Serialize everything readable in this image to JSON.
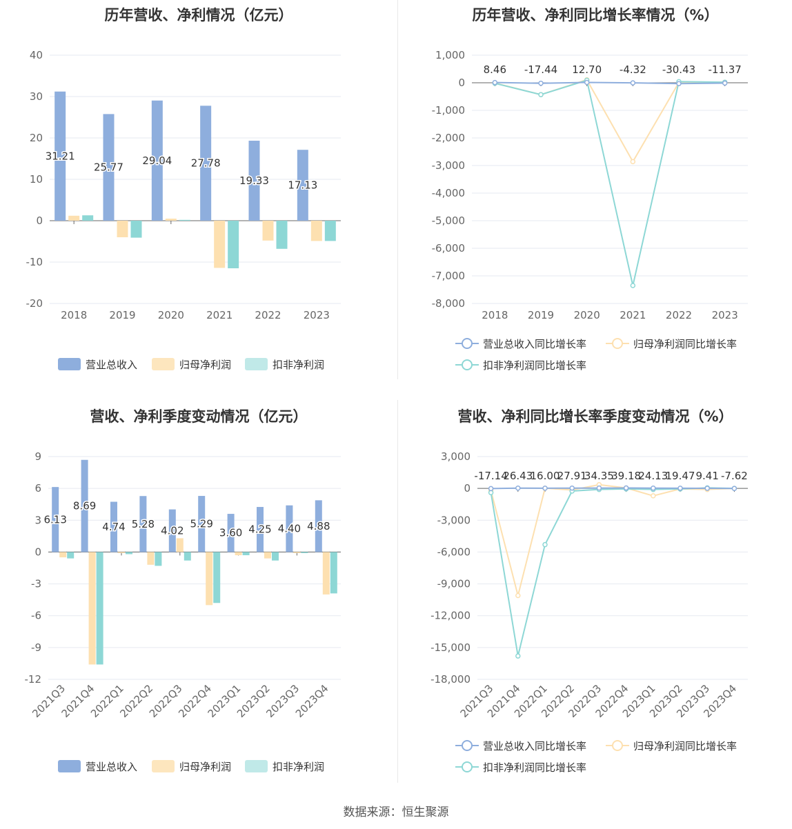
{
  "colors": {
    "revenue": "#8eaedd",
    "parent_profit": "#fde0b0",
    "deducted_profit": "#8dd7d5",
    "revenue_legend": "#8eaedd",
    "parent_legend": "#fde6be",
    "deducted_legend": "#c0e9e8",
    "axis_text": "#666666",
    "grid": "#e6e9f0",
    "label": "#333333"
  },
  "legend": {
    "revenue": "营业总收入",
    "parent_profit": "归母净利润",
    "deducted_profit": "扣非净利润",
    "revenue_growth": "营业总收入同比增长率",
    "parent_growth": "归母净利润同比增长率",
    "deducted_growth": "扣非净利润同比增长率"
  },
  "source": "数据来源：恒生聚源",
  "chart_data": [
    {
      "id": "annual-bars",
      "type": "bar",
      "title": "历年营收、净利情况（亿元）",
      "categories": [
        "2018",
        "2019",
        "2020",
        "2021",
        "2022",
        "2023"
      ],
      "series": [
        {
          "name": "营业总收入",
          "values": [
            31.21,
            25.77,
            29.04,
            27.78,
            19.33,
            17.13
          ]
        },
        {
          "name": "归母净利润",
          "values": [
            1.2,
            -4.0,
            0.5,
            -11.4,
            -4.8,
            -4.9
          ]
        },
        {
          "name": "扣非净利润",
          "values": [
            1.3,
            -4.1,
            0.2,
            -11.5,
            -6.8,
            -4.9
          ]
        }
      ],
      "data_labels": [
        "31.21",
        "25.77",
        "29.04",
        "27.78",
        "19.33",
        "17.13"
      ],
      "yticks": [
        "40",
        "30",
        "20",
        "10",
        "0",
        "-10",
        "-20"
      ],
      "ylim": [
        -20,
        40
      ],
      "grid": true,
      "legend_position": "bottom"
    },
    {
      "id": "annual-growth",
      "type": "line",
      "title": "历年营收、净利同比增长率情况（%）",
      "categories": [
        "2018",
        "2019",
        "2020",
        "2021",
        "2022",
        "2023"
      ],
      "series": [
        {
          "name": "营业总收入同比增长率",
          "values": [
            8.46,
            -17.44,
            12.7,
            -4.32,
            -30.43,
            -11.37
          ]
        },
        {
          "name": "归母净利润同比增长率",
          "values": [
            -10,
            -430,
            110,
            -2860,
            10,
            20
          ]
        },
        {
          "name": "扣非净利润同比增长率",
          "values": [
            -20,
            -430,
            90,
            -7350,
            40,
            20
          ]
        }
      ],
      "data_labels": [
        "8.46",
        "-17.44",
        "12.70",
        "-4.32",
        "-30.43",
        "-11.37"
      ],
      "yticks": [
        "1,000",
        "0",
        "-1,000",
        "-2,000",
        "-3,000",
        "-4,000",
        "-5,000",
        "-6,000",
        "-7,000",
        "-8,000"
      ],
      "ylim": [
        -8000,
        1000
      ],
      "grid": true,
      "legend_position": "bottom"
    },
    {
      "id": "quarter-bars",
      "type": "bar",
      "title": "营收、净利季度变动情况（亿元）",
      "categories": [
        "2021Q3",
        "2021Q4",
        "2022Q1",
        "2022Q2",
        "2022Q3",
        "2022Q4",
        "2023Q1",
        "2023Q2",
        "2023Q3",
        "2023Q4"
      ],
      "series": [
        {
          "name": "营业总收入",
          "values": [
            6.13,
            8.69,
            4.74,
            5.28,
            4.02,
            5.29,
            3.6,
            4.25,
            4.4,
            4.88
          ]
        },
        {
          "name": "归母净利润",
          "values": [
            -0.5,
            -10.6,
            -0.1,
            -1.2,
            1.3,
            -5.0,
            -0.3,
            -0.6,
            -0.1,
            -4.0
          ]
        },
        {
          "name": "扣非净利润",
          "values": [
            -0.6,
            -10.6,
            -0.2,
            -1.3,
            -0.8,
            -4.8,
            -0.3,
            -0.8,
            -0.1,
            -3.9
          ]
        }
      ],
      "data_labels": [
        "6.13",
        "8.69",
        "4.74",
        "5.28",
        "4.02",
        "5.29",
        "3.60",
        "4.25",
        "4.40",
        "4.88"
      ],
      "yticks": [
        "9",
        "6",
        "3",
        "0",
        "-3",
        "-6",
        "-9",
        "-12"
      ],
      "ylim": [
        -12,
        9
      ],
      "grid": true,
      "legend_position": "bottom"
    },
    {
      "id": "quarter-growth",
      "type": "line",
      "title": "营收、净利同比增长率季度变动情况（%）",
      "categories": [
        "2021Q3",
        "2021Q4",
        "2022Q1",
        "2022Q2",
        "2022Q3",
        "2022Q4",
        "2023Q1",
        "2023Q2",
        "2023Q3",
        "2023Q4"
      ],
      "series": [
        {
          "name": "营业总收入同比增长率",
          "values": [
            -17.14,
            26.43,
            16.0,
            27.91,
            34.35,
            39.18,
            24.13,
            19.47,
            9.41,
            -7.62
          ]
        },
        {
          "name": "归母净利润同比增长率",
          "values": [
            -200,
            -10100,
            20,
            -150,
            350,
            40,
            -700,
            -50,
            -100,
            0
          ]
        },
        {
          "name": "扣非净利润同比增长率",
          "values": [
            -400,
            -15800,
            -5300,
            -250,
            -100,
            -50,
            -100,
            -50,
            50,
            0
          ]
        }
      ],
      "data_labels": [
        "-17.14",
        "26.43",
        "16.00",
        "27.91",
        "34.35",
        "39.18",
        "24.13",
        "19.47",
        "9.41",
        "-7.62"
      ],
      "yticks": [
        "3,000",
        "0",
        "-3,000",
        "-6,000",
        "-9,000",
        "-12,000",
        "-15,000",
        "-18,000"
      ],
      "ylim": [
        -18000,
        3000
      ],
      "grid": true,
      "legend_position": "bottom"
    }
  ]
}
